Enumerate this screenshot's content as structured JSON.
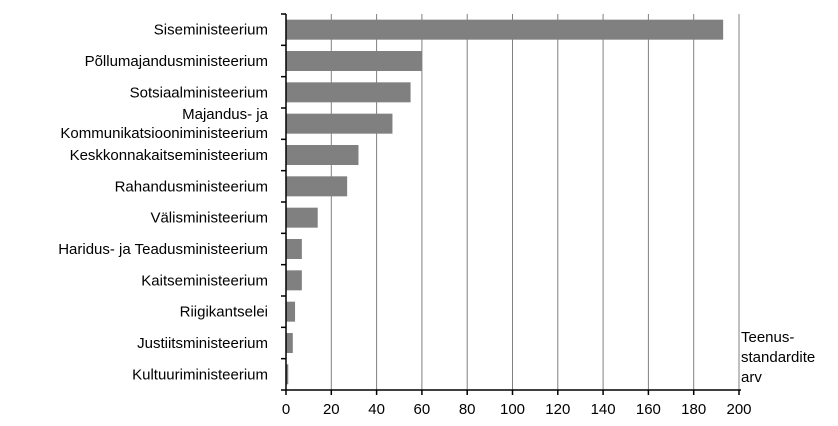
{
  "chart_data": {
    "type": "bar",
    "orientation": "horizontal",
    "categories": [
      "Siseministeerium",
      "Põllumajandusministeerium",
      "Sotsiaalministeerium",
      "Majandus- ja Kommunikatsiooniministeerium",
      "Keskkonnakaitseministeerium",
      "Rahandusministeerium",
      "Välisministeerium",
      "Haridus- ja Teadusministeerium",
      "Kaitseministeerium",
      "Riigikantselei",
      "Justiitsministeerium",
      "Kultuuriministeerium"
    ],
    "category_label_lines": [
      [
        "Siseministeerium"
      ],
      [
        "Põllumajandusministeerium"
      ],
      [
        "Sotsiaalministeerium"
      ],
      [
        "Majandus- ja",
        "Kommunikatsiooniministeerium"
      ],
      [
        "Keskkonnakaitseministeerium"
      ],
      [
        "Rahandusministeerium"
      ],
      [
        "Välisministeerium"
      ],
      [
        "Haridus- ja Teadusministeerium"
      ],
      [
        "Kaitseministeerium"
      ],
      [
        "Riigikantselei"
      ],
      [
        "Justiitsministeerium"
      ],
      [
        "Kultuuriministeerium"
      ]
    ],
    "values": [
      193,
      60,
      55,
      47,
      32,
      27,
      14,
      7,
      7,
      4,
      3,
      1
    ],
    "xlim": [
      0,
      200
    ],
    "xticks": [
      0,
      20,
      40,
      60,
      80,
      100,
      120,
      140,
      160,
      180,
      200
    ],
    "xlabel_lines": [
      "Teenus-",
      "standardite",
      "arv"
    ],
    "grid": "vertical",
    "bar_color": "#808080",
    "grid_color": "#808080"
  }
}
